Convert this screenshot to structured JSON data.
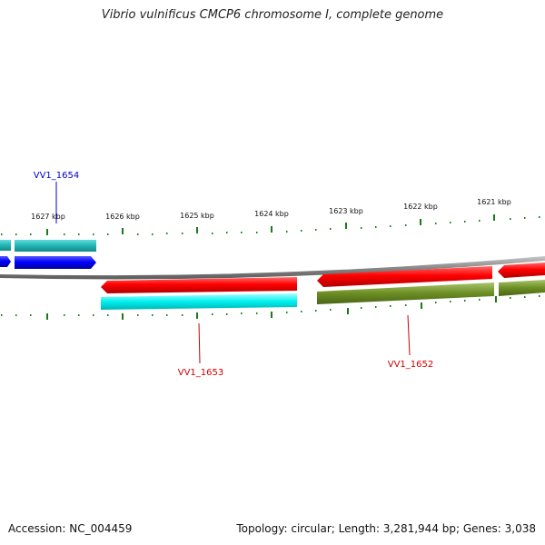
{
  "title": "Vibrio vulnificus CMCP6 chromosome I, complete genome",
  "scale_labels": [
    {
      "kbp": 1627,
      "label": "1627 kbp"
    },
    {
      "kbp": 1626,
      "label": "1626 kbp"
    },
    {
      "kbp": 1625,
      "label": "1625 kbp"
    },
    {
      "kbp": 1624,
      "label": "1624 kbp"
    },
    {
      "kbp": 1623,
      "label": "1623 kbp"
    },
    {
      "kbp": 1622,
      "label": "1622 kbp"
    },
    {
      "kbp": 1621,
      "label": "1621 kbp"
    }
  ],
  "gene_labels": [
    {
      "label": "VV1_1654",
      "color": "#0000cc"
    },
    {
      "label": "VV1_1653",
      "color": "#cc0000"
    },
    {
      "label": "VV1_1652",
      "color": "#cc0000"
    }
  ],
  "colors": {
    "gene_forward": "#0000ee",
    "gene_reverse": "#ee0000",
    "cds_cyan": "#00e5e5",
    "cds_teal": "#1fb5b5",
    "cds_olive": "#6b8e23",
    "backbone": "#888888",
    "tick": "#1a7a1a"
  },
  "footer": {
    "accession": "Accession: NC_004459",
    "summary": "Topology: circular; Length: 3,281,944 bp; Genes: 3,038"
  }
}
